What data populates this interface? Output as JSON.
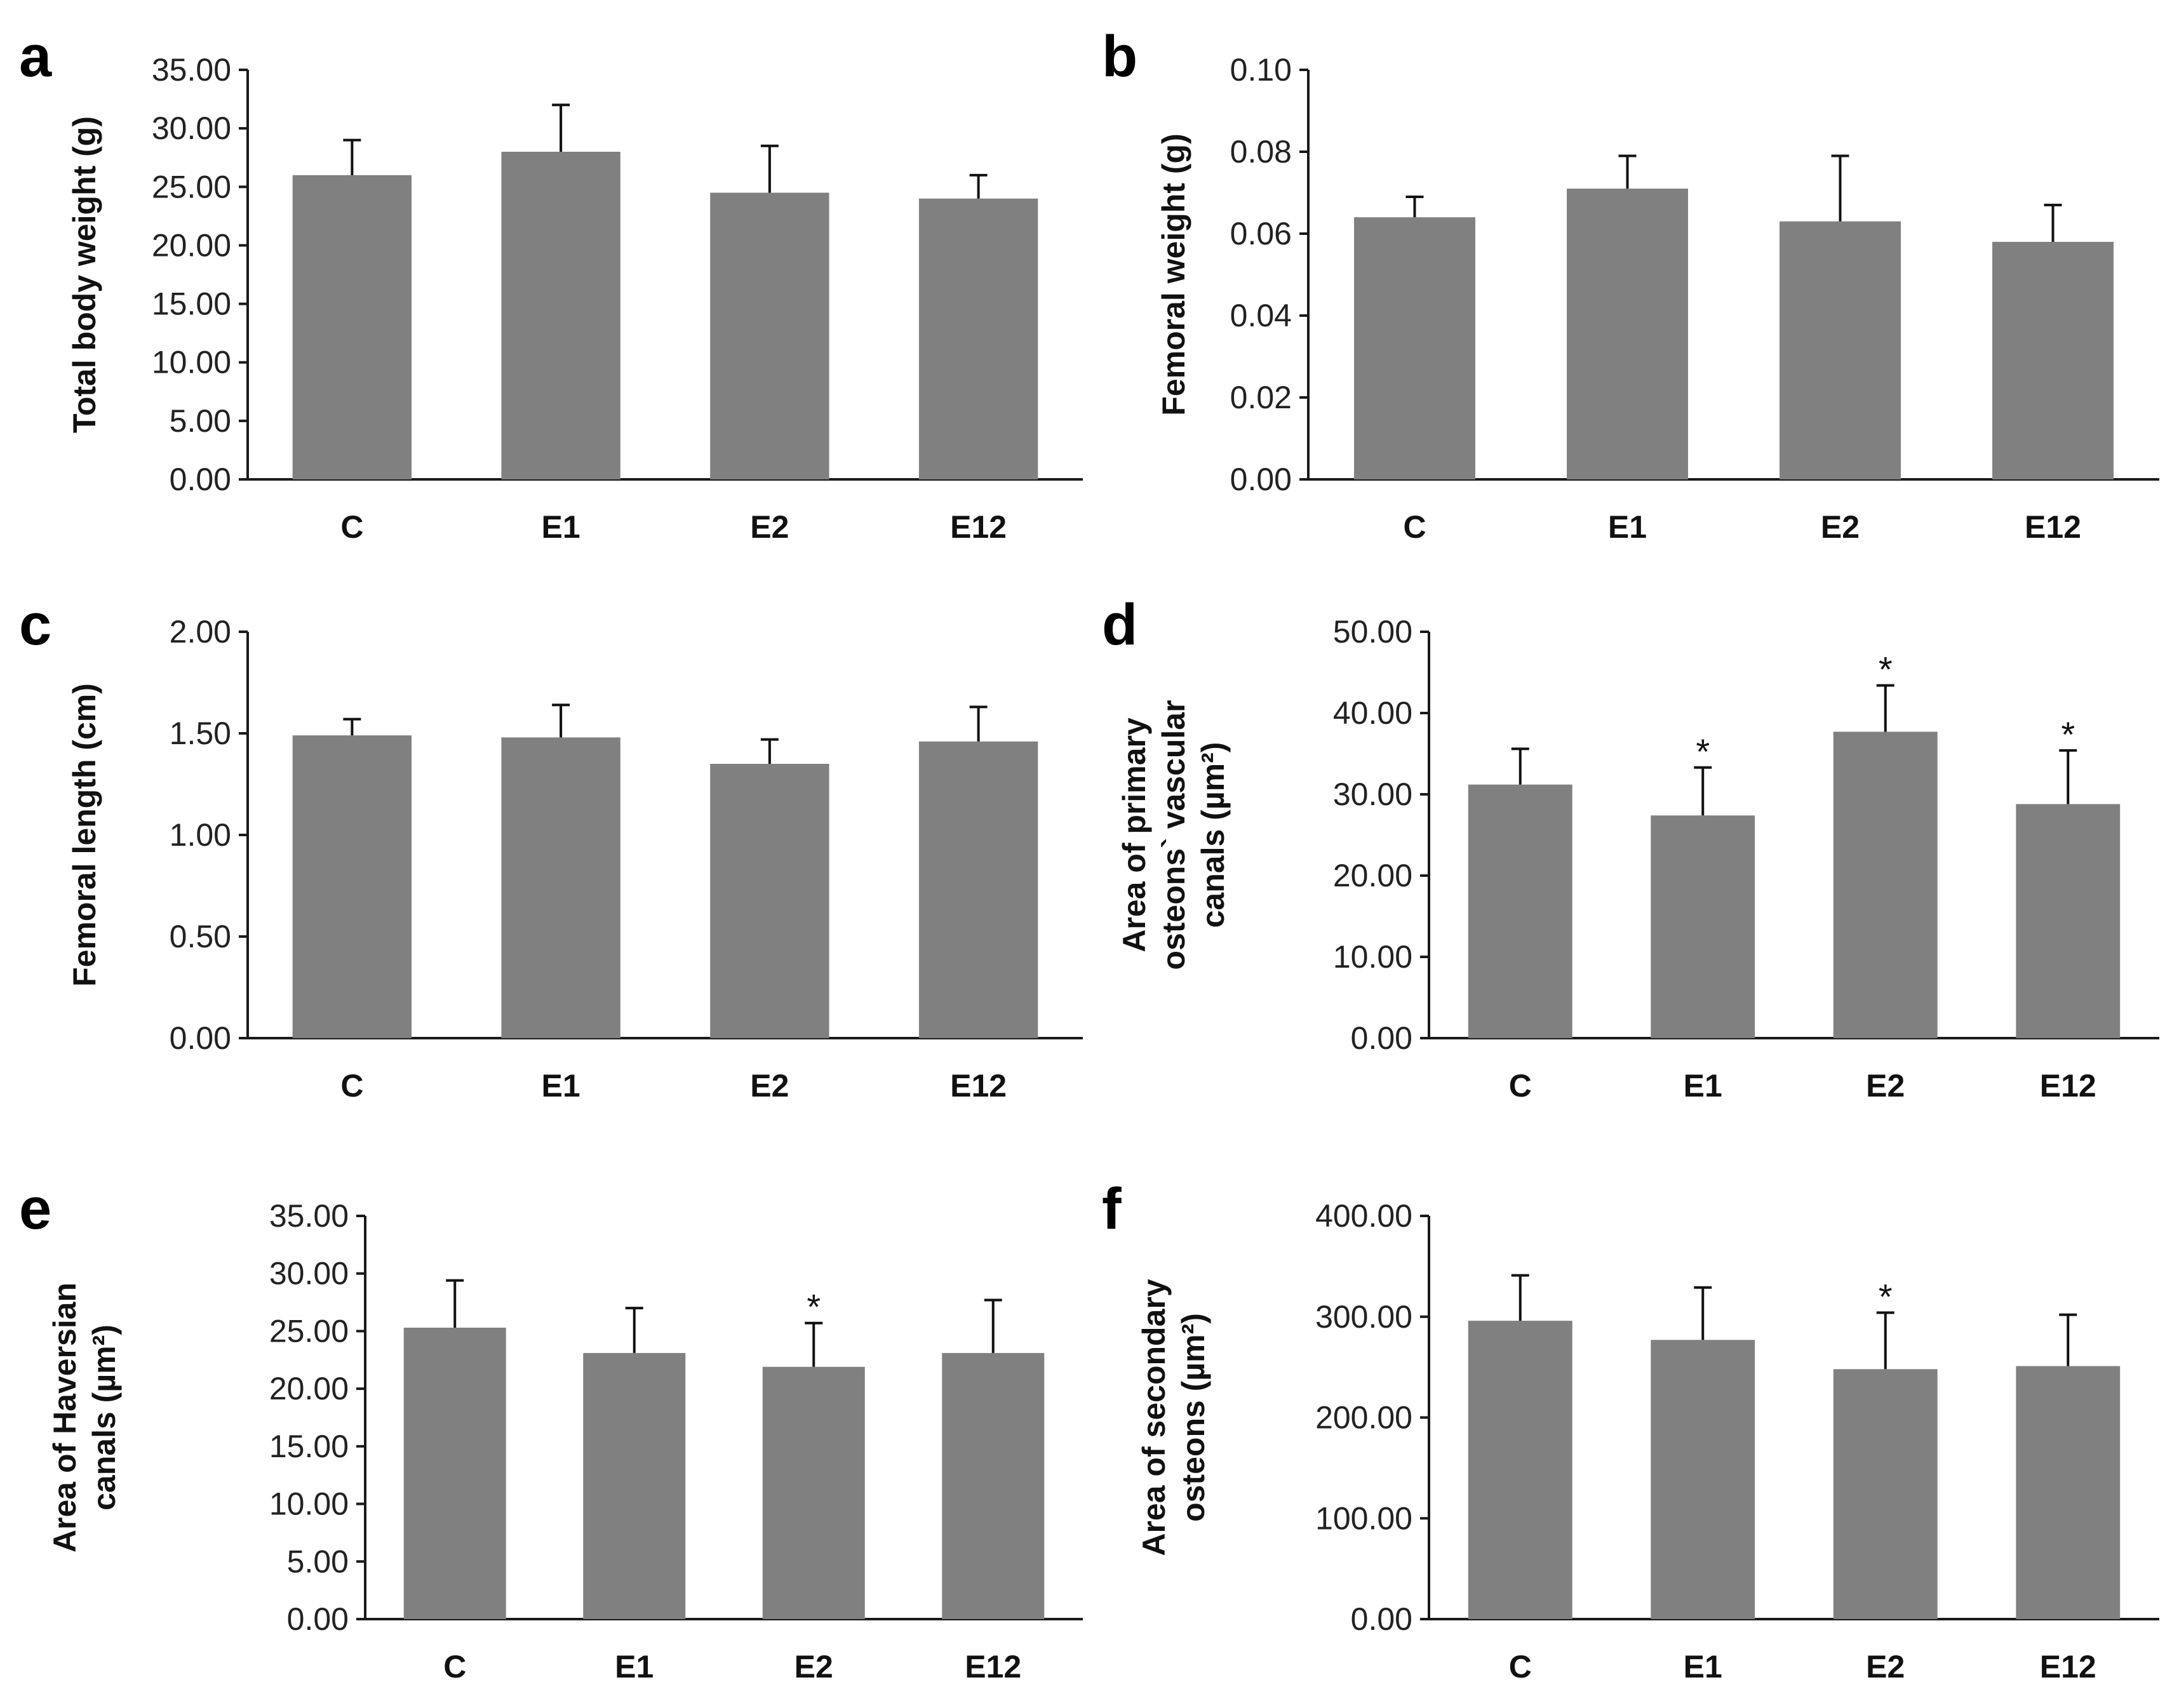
{
  "chart_data": [
    {
      "panel": "a",
      "type": "bar",
      "categories": [
        "C",
        "E1",
        "E2",
        "E12"
      ],
      "values": [
        26.0,
        28.0,
        24.5,
        24.0
      ],
      "errors": [
        3.0,
        4.0,
        4.0,
        2.0
      ],
      "significant": [
        false,
        false,
        false,
        false
      ],
      "ylabel": [
        "Total body weight (g)"
      ],
      "ylim": [
        0,
        35
      ],
      "yticks": [
        "0.00",
        "5.00",
        "10.00",
        "15.00",
        "20.00",
        "25.00",
        "30.00",
        "35.00"
      ],
      "bar_color": "#808080"
    },
    {
      "panel": "b",
      "type": "bar",
      "categories": [
        "C",
        "E1",
        "E2",
        "E12"
      ],
      "values": [
        0.064,
        0.071,
        0.063,
        0.058
      ],
      "errors": [
        0.005,
        0.008,
        0.016,
        0.009
      ],
      "significant": [
        false,
        false,
        false,
        false
      ],
      "ylabel": [
        "Femoral weight (g)"
      ],
      "ylim": [
        0,
        0.1
      ],
      "yticks": [
        "0.00",
        "0.02",
        "0.04",
        "0.06",
        "0.08",
        "0.10"
      ],
      "bar_color": "#808080"
    },
    {
      "panel": "c",
      "type": "bar",
      "categories": [
        "C",
        "E1",
        "E2",
        "E12"
      ],
      "values": [
        1.49,
        1.48,
        1.35,
        1.46
      ],
      "errors": [
        0.08,
        0.16,
        0.12,
        0.17
      ],
      "significant": [
        false,
        false,
        false,
        false
      ],
      "ylabel": [
        "Femoral length (cm)"
      ],
      "ylim": [
        0,
        2
      ],
      "yticks": [
        "0.00",
        "0.50",
        "1.00",
        "1.50",
        "2.00"
      ],
      "bar_color": "#808080"
    },
    {
      "panel": "d",
      "type": "bar",
      "categories": [
        "C",
        "E1",
        "E2",
        "E12"
      ],
      "values": [
        31.2,
        27.4,
        37.7,
        28.8
      ],
      "errors": [
        4.4,
        5.9,
        5.7,
        6.6
      ],
      "significant": [
        false,
        true,
        true,
        true
      ],
      "ylabel": [
        "Area of primary",
        "osteons` vascular",
        "canals (µm²)"
      ],
      "ylim": [
        0,
        50
      ],
      "yticks": [
        "0.00",
        "10.00",
        "20.00",
        "30.00",
        "40.00",
        "50.00"
      ],
      "bar_color": "#808080"
    },
    {
      "panel": "e",
      "type": "bar",
      "categories": [
        "C",
        "E1",
        "E2",
        "E12"
      ],
      "values": [
        25.3,
        23.1,
        21.9,
        23.1
      ],
      "errors": [
        4.1,
        3.9,
        3.8,
        4.6
      ],
      "significant": [
        false,
        false,
        true,
        false
      ],
      "ylabel": [
        "Area of Haversian",
        "canals (µm²)"
      ],
      "ylim": [
        0,
        35
      ],
      "yticks": [
        "0.00",
        "5.00",
        "10.00",
        "15.00",
        "20.00",
        "25.00",
        "30.00",
        "35.00"
      ],
      "bar_color": "#808080"
    },
    {
      "panel": "f",
      "type": "bar",
      "categories": [
        "C",
        "E1",
        "E2",
        "E12"
      ],
      "values": [
        296.0,
        277.0,
        248.0,
        251.0
      ],
      "errors": [
        45.0,
        52.0,
        56.0,
        51.0
      ],
      "significant": [
        false,
        false,
        true,
        false
      ],
      "ylabel": [
        "Area of secondary",
        "osteons (µm²)"
      ],
      "ylim": [
        0,
        400
      ],
      "yticks": [
        "0.00",
        "100.00",
        "200.00",
        "300.00",
        "400.00"
      ],
      "bar_color": "#808080"
    }
  ],
  "significance_marker": "*"
}
